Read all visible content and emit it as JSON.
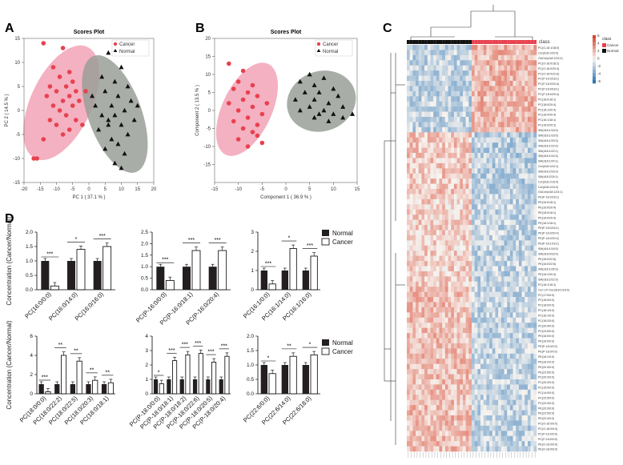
{
  "panels": {
    "A": "A",
    "B": "B",
    "C": "C",
    "D": "D"
  },
  "colors": {
    "cancer": "#e8414f",
    "normal": "#111111",
    "cancer_ellipse": "#f2a3b6",
    "normal_ellipse": "#9a9f98",
    "bar_normal": "#231f20",
    "bar_cancer": "#ffffff",
    "heat_high": "#d9442e",
    "heat_low": "#2f76b6",
    "heat_mid": "#f7f7f7"
  },
  "chart_data": [
    {
      "id": "A",
      "type": "scatter",
      "title": "Scores Plot",
      "xlabel": "PC 1 ( 37.1 % )",
      "ylabel": "PC 2 ( 14.5 % )",
      "xlim": [
        -20,
        20
      ],
      "ylim": [
        -15,
        15
      ],
      "xticks": [
        "-20",
        "-15",
        "-10",
        "-5",
        "0",
        "5",
        "10",
        "15",
        "20"
      ],
      "yticks": [
        "-15",
        "-10",
        "-5",
        "0",
        "5",
        "10",
        "15"
      ],
      "legend": [
        "Cancer",
        "Normal"
      ],
      "series": [
        {
          "name": "Cancer",
          "points": [
            [
              -14,
              14
            ],
            [
              -8,
              13
            ],
            [
              -11,
              9
            ],
            [
              -6,
              8
            ],
            [
              -9,
              7
            ],
            [
              -5,
              6
            ],
            [
              -12,
              5
            ],
            [
              -7,
              5
            ],
            [
              -4,
              4
            ],
            [
              -10,
              4
            ],
            [
              -13,
              3
            ],
            [
              -6,
              3
            ],
            [
              -8,
              2
            ],
            [
              -11,
              1
            ],
            [
              -5,
              1
            ],
            [
              -9,
              0
            ],
            [
              -7,
              -1
            ],
            [
              -12,
              -2
            ],
            [
              -4,
              -2
            ],
            [
              -10,
              -3
            ],
            [
              -6,
              -4
            ],
            [
              -8,
              -5
            ],
            [
              -14,
              -6
            ],
            [
              -2,
              -3
            ],
            [
              -16,
              -10
            ],
            [
              -17,
              -10
            ],
            [
              -1,
              4
            ],
            [
              -3,
              2
            ]
          ]
        },
        {
          "name": "Normal",
          "points": [
            [
              6,
              12
            ],
            [
              10,
              9
            ],
            [
              4,
              7
            ],
            [
              8,
              6
            ],
            [
              12,
              5
            ],
            [
              5,
              4
            ],
            [
              9,
              3
            ],
            [
              13,
              2
            ],
            [
              2,
              1
            ],
            [
              7,
              1
            ],
            [
              11,
              0
            ],
            [
              4,
              -1
            ],
            [
              8,
              -1
            ],
            [
              14,
              -2
            ],
            [
              6,
              -3
            ],
            [
              10,
              -3
            ],
            [
              3,
              -4
            ],
            [
              12,
              -5
            ],
            [
              7,
              -6
            ],
            [
              9,
              -7
            ],
            [
              5,
              -8
            ],
            [
              11,
              -9
            ],
            [
              8,
              -11
            ],
            [
              10,
              -12
            ],
            [
              1,
              3
            ],
            [
              15,
              1
            ],
            [
              6,
              -2
            ]
          ]
        }
      ]
    },
    {
      "id": "B",
      "type": "scatter",
      "title": "Scores Plot",
      "xlabel": "Component 1 ( 36.9 % )",
      "ylabel": "Component 2 ( 13.5 % )",
      "xlim": [
        -15,
        15
      ],
      "ylim": [
        -20,
        20
      ],
      "xticks": [
        "-15",
        "-10",
        "-5",
        "0",
        "5",
        "10",
        "15"
      ],
      "yticks": [
        "-15",
        "-10",
        "-5",
        "0",
        "5",
        "10",
        "15",
        "20"
      ],
      "legend": [
        "Cancer",
        "Normal"
      ],
      "series": [
        {
          "name": "Cancer",
          "points": [
            [
              -12,
              13
            ],
            [
              -9,
              11
            ],
            [
              -10,
              8
            ],
            [
              -7,
              7
            ],
            [
              -11,
              6
            ],
            [
              -8,
              5
            ],
            [
              -6,
              4
            ],
            [
              -9,
              3
            ],
            [
              -12,
              2
            ],
            [
              -7,
              1
            ],
            [
              -10,
              0
            ],
            [
              -5,
              -1
            ],
            [
              -8,
              -2
            ],
            [
              -11,
              -3
            ],
            [
              -6,
              -4
            ],
            [
              -9,
              -5
            ],
            [
              -7,
              -6
            ],
            [
              -10,
              -8
            ],
            [
              -5,
              -9
            ],
            [
              -8,
              -10
            ],
            [
              -4,
              2
            ],
            [
              -6,
              -7
            ]
          ]
        },
        {
          "name": "Normal",
          "points": [
            [
              5,
              10
            ],
            [
              8,
              9
            ],
            [
              3,
              8
            ],
            [
              6,
              7
            ],
            [
              10,
              6
            ],
            [
              4,
              5
            ],
            [
              7,
              5
            ],
            [
              11,
              4
            ],
            [
              2,
              3
            ],
            [
              6,
              3
            ],
            [
              9,
              2
            ],
            [
              12,
              1
            ],
            [
              5,
              1
            ],
            [
              8,
              0
            ],
            [
              10,
              -1
            ],
            [
              3,
              0
            ],
            [
              7,
              -1
            ],
            [
              12,
              -2
            ],
            [
              9,
              -3
            ],
            [
              14,
              -1
            ],
            [
              6,
              -2
            ]
          ]
        }
      ]
    },
    {
      "id": "C",
      "type": "heatmap",
      "legend_title": "class",
      "legend": [
        "Cancer",
        "Normal"
      ],
      "scale_ticks": [
        "6",
        "4",
        "2",
        "0",
        "-2",
        "-4",
        "-6"
      ],
      "rows": [
        "PC(O-16:1/18:0)",
        "Cer(d18:1/20:0)",
        "GlcCer(d18:1/22:0)",
        "PC(O-16:0/18:2)",
        "PC(O-16:0/20:4)",
        "PC(O-16:0/22:6)",
        "PC(P-16:0/18:1)",
        "PC(P-16:0/20:4)",
        "PC(P-18:0/18:1)",
        "PC(P-18:0/20:4)",
        "PC(18:0/18:1)",
        "PC(18:0/20:4)",
        "PC(18:1/20:4)",
        "PC(16:0/20:4)",
        "PC(16:1/18:1)",
        "PC(16:0/20:2)",
        "SM(d18:1/16:0)",
        "SM(d18:1/18:0)",
        "SM(d18:1/20:0)",
        "SM(d18:1/22:0)",
        "SM(d18:1/22:1)",
        "SM(d18:1/24:0)",
        "SM(d18:1/24:1)",
        "Cer(d18:1/24:1)",
        "SM(d18:2/16:0)",
        "SM(d18:2/24:1)",
        "Cer(d18:1/16:0)",
        "Cer(d18:1/24:0)",
        "GlcCer(d18:1/24:1)",
        "PE(P-18:0/18:1)",
        "PE(16:0/18:1)",
        "PE(16:0/20:4)",
        "PE(18:0/18:1)",
        "PE(18:0/20:4)",
        "PE(18:1/18:1)",
        "PE(P-16:0/18:1)",
        "PE(P-16:0/20:4)",
        "PE(P-18:0/20:4)",
        "PE(P-18:1/18:1)",
        "SM(d16:1/18:0)",
        "SM(d18:0/18:0)",
        "PE(18:0/22:6)",
        "PE(16:0/22:6)",
        "SM(d18:1/26:0)",
        "PE(18:1/20:4)",
        "SM(d18:2/22:0)",
        "PC(18:1/18:1)",
        "Cer-1-P-Cer(d18:1/18:0)",
        "PC(17:0/0:0)",
        "PC(16:0/0:0)",
        "PC(18:0/0:0)",
        "PC(18:1/0:0)",
        "PC(16:1/0:0)",
        "PC(18:2/0:0)",
        "PC(20:4/0:0)",
        "PC(22:6/0:0)",
        "PE(18:0/0:0)",
        "PE(16:0/0:0)",
        "PE(P-16:0/0:0)",
        "PE(P-18:0/0:0)",
        "PE(18:1/0:0)",
        "PE(18:2/0:0)",
        "PE(20:4/0:0)",
        "PE(22:6/0:0)",
        "PC(20:3/0:0)",
        "PC(20:2/0:0)",
        "PC(15:0/0:0)",
        "PC(14:0/0:0)",
        "PC(22:5/0:0)",
        "PC(22:4/0:0)",
        "PE(20:3/0:0)",
        "PE(22:5/0:0)",
        "PE(22:4/0:0)",
        "PC(O-16:0/0:0)",
        "PC(O-18:0/0:0)",
        "PC(P-16:0/0:0)",
        "PC(P-18:0/0:0)",
        "PE(O-16:0/0:0)",
        "PE(O-18:0/0:0)"
      ]
    },
    {
      "id": "D",
      "type": "bar",
      "group": 1,
      "ylabel": "Concentration (Cancer/Normal)",
      "legend": [
        "Normal",
        "Cancer"
      ],
      "subplots": [
        {
          "ylim": [
            0,
            2
          ],
          "yticks": [
            "0.0",
            "0.5",
            "1.0",
            "1.5",
            "2.0"
          ],
          "categories": [
            "PC(16:0/0:0)",
            "PC(16:0/14:0)",
            "PC(16:0/16:0)"
          ],
          "normal": [
            1.0,
            1.0,
            1.0
          ],
          "cancer": [
            0.13,
            1.4,
            1.5
          ],
          "stars": [
            "***",
            "*",
            "***"
          ]
        },
        {
          "ylim": [
            0,
            2.5
          ],
          "yticks": [
            "0.0",
            "0.5",
            "1.0",
            "1.5",
            "2.0",
            "2.5"
          ],
          "categories": [
            "PC(P-16:0/0:0)",
            "PC(P-16:0/18:1)",
            "PC(P-16:0/20:4)"
          ],
          "normal": [
            1.0,
            1.0,
            1.0
          ],
          "cancer": [
            0.4,
            1.7,
            1.7
          ],
          "stars": [
            "***",
            "***",
            "***"
          ]
        },
        {
          "ylim": [
            0,
            3
          ],
          "yticks": [
            "0",
            "1",
            "2",
            "3"
          ],
          "categories": [
            "PC(16:1/0:0)",
            "PC(16:1/14:0)",
            "PC(16:1/16:0)"
          ],
          "normal": [
            1.0,
            1.0,
            1.0
          ],
          "cancer": [
            0.3,
            2.15,
            1.75
          ],
          "stars": [
            "***",
            "*",
            "***"
          ]
        }
      ]
    },
    {
      "id": "D2",
      "type": "bar",
      "group": 2,
      "ylabel": "Concentration (Cancer/Normal)",
      "legend": [
        "Normal",
        "Cancer"
      ],
      "subplots": [
        {
          "ylim": [
            0,
            6
          ],
          "yticks": [
            "0",
            "2",
            "4",
            "6"
          ],
          "categories": [
            "PC(18:0/0:0)",
            "PC(18:0/22:2)",
            "PC(18:0/22:5)",
            "PC(18:0/20:3)",
            "PC(18:0/18:1)"
          ],
          "normal": [
            1.0,
            1.0,
            1.0,
            1.0,
            1.0
          ],
          "cancer": [
            0.2,
            4.0,
            3.4,
            1.4,
            1.15
          ],
          "stars": [
            "***",
            "**",
            "**",
            "**",
            "**"
          ]
        },
        {
          "ylim": [
            0,
            4
          ],
          "yticks": [
            "0",
            "1",
            "2",
            "3",
            "4"
          ],
          "categories": [
            "PC(P-18:0/0:0)",
            "PC(P-18:0/18:1)",
            "PC(P-18:0/18:2)",
            "PC(P-18:0/22:6)",
            "PC(P-18:0/20:5)",
            "PC(P-18:0/20:4)"
          ],
          "normal": [
            1.0,
            1.0,
            1.0,
            1.0,
            1.0,
            1.0
          ],
          "cancer": [
            0.7,
            2.3,
            2.7,
            2.8,
            2.2,
            2.6
          ],
          "stars": [
            "*",
            "***",
            "***",
            "***",
            "***",
            "***"
          ]
        },
        {
          "ylim": [
            0,
            2
          ],
          "yticks": [
            "0.0",
            "0.5",
            "1.0",
            "1.5",
            "2.0"
          ],
          "categories": [
            "PC(22:6/0:0)",
            "PC(22:6/14:0)",
            "PC(22:6/18:0)"
          ],
          "normal": [
            1.0,
            1.0,
            1.0
          ],
          "cancer": [
            0.7,
            1.3,
            1.35
          ],
          "stars": [
            "*",
            "**",
            "*"
          ]
        }
      ]
    }
  ]
}
